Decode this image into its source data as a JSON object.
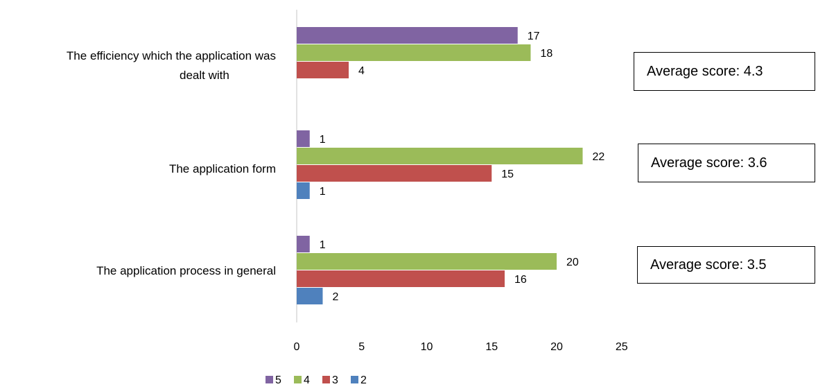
{
  "chart_data": {
    "type": "bar",
    "orientation": "horizontal",
    "categories": [
      [
        "The efficiency which the application was",
        "dealt with"
      ],
      [
        "The application form"
      ],
      [
        "The application process in general"
      ]
    ],
    "series": [
      {
        "name": "5",
        "color": "#8064A2",
        "values": [
          17,
          1,
          1
        ]
      },
      {
        "name": "4",
        "color": "#9BBB59",
        "values": [
          18,
          22,
          20
        ]
      },
      {
        "name": "3",
        "color": "#C0504D",
        "values": [
          4,
          15,
          16
        ]
      },
      {
        "name": "2",
        "color": "#4F81BD",
        "values": [
          null,
          1,
          2
        ]
      }
    ],
    "x_ticks": [
      "0",
      "5",
      "10",
      "15",
      "20",
      "25"
    ],
    "xlim": [
      0,
      25
    ],
    "grid": false,
    "legend_position": "bottom-left",
    "annotations": [
      "Average score: 4.3",
      "Average score: 3.6",
      "Average score: 3.5"
    ]
  }
}
